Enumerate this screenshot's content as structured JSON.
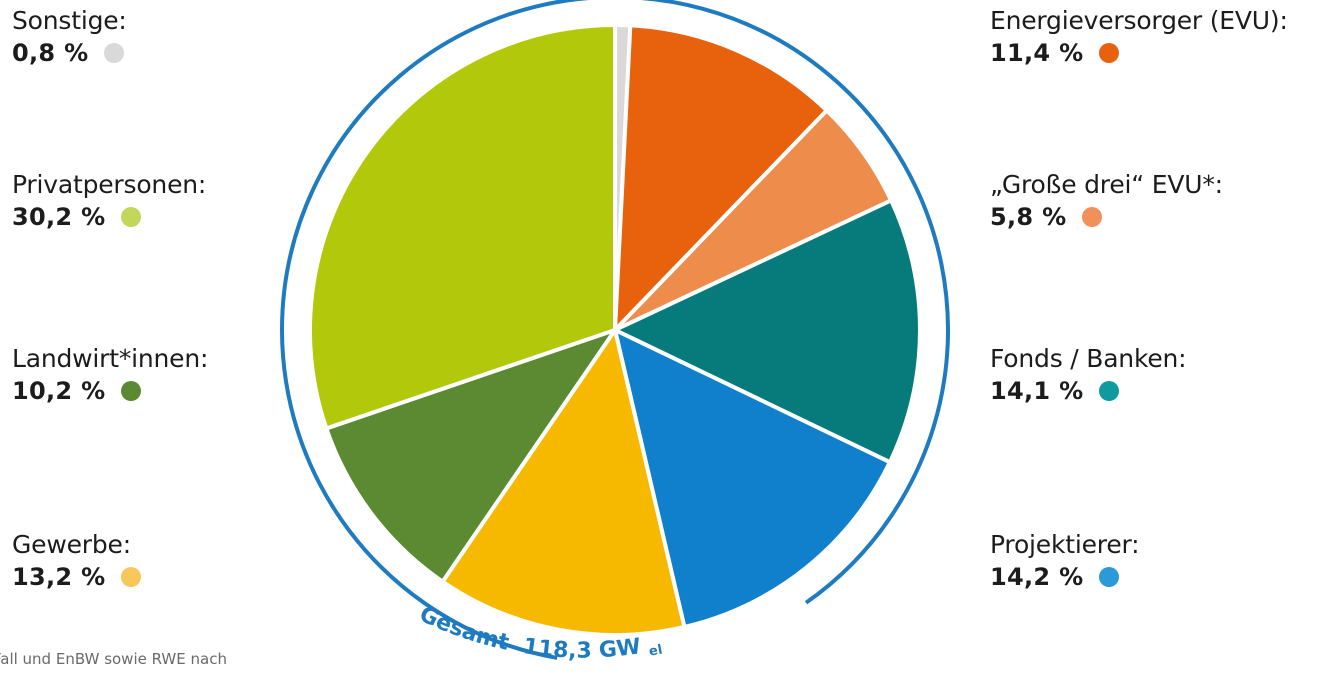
{
  "chart_data": {
    "type": "pie",
    "total": {
      "prefix": "Gesamt",
      "value_text": "118,3 GW",
      "unit_subscript": "el"
    },
    "slices": [
      {
        "label": "Sonstige:",
        "value": 0.8,
        "value_text": "0,8 %",
        "color": "#d9d9d9",
        "dot_color": "#d9d9d9"
      },
      {
        "label": "Energieversorger (EVU):",
        "value": 11.4,
        "value_text": "11,4 %",
        "color": "#e8620d",
        "dot_color": "#e8620d"
      },
      {
        "label": "„Große drei“ EVU*:",
        "value": 5.8,
        "value_text": "5,8 %",
        "color": "#ee8c4c",
        "dot_color": "#f0905a"
      },
      {
        "label": "Fonds / Banken:",
        "value": 14.1,
        "value_text": "14,1 %",
        "color": "#077b7b",
        "dot_color": "#0f9aa0"
      },
      {
        "label": "Projektierer:",
        "value": 14.2,
        "value_text": "14,2 %",
        "color": "#1180cc",
        "dot_color": "#2a9ad8"
      },
      {
        "label": "Gewerbe:",
        "value": 13.2,
        "value_text": "13,2 %",
        "color": "#f7b800",
        "dot_color": "#f8c75a"
      },
      {
        "label": "Landwirt*innen:",
        "value": 10.2,
        "value_text": "10,2 %",
        "color": "#5b8a32",
        "dot_color": "#5b8a32"
      },
      {
        "label": "Privatpersonen:",
        "value": 30.2,
        "value_text": "30,2 %",
        "color": "#b1c90a",
        "dot_color": "#c2d65a"
      }
    ]
  },
  "legend": {
    "left": [
      0,
      7,
      6,
      5
    ],
    "right": [
      1,
      2,
      3,
      4
    ]
  },
  "footnote": "Fall und EnBW sowie RWE nach"
}
